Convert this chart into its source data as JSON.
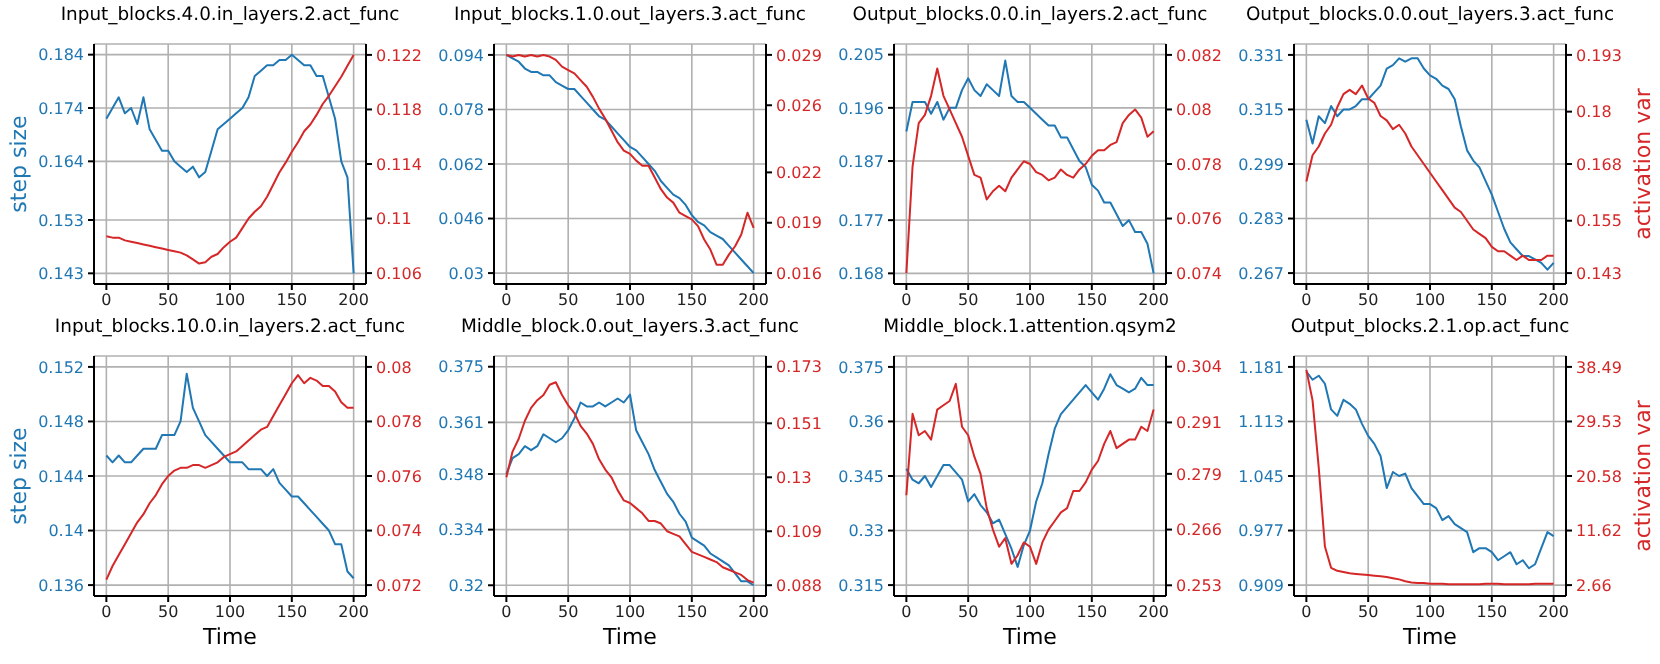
{
  "chart_data": [
    {
      "type": "line",
      "title": "Input_blocks.4.0.in_layers.2.act_func",
      "ylabel": "step size",
      "grid": true,
      "legend": false,
      "marker": "none",
      "x": [
        0,
        5,
        10,
        15,
        20,
        25,
        30,
        35,
        40,
        45,
        50,
        55,
        60,
        65,
        70,
        75,
        80,
        85,
        90,
        95,
        100,
        105,
        110,
        115,
        120,
        125,
        130,
        135,
        140,
        145,
        150,
        155,
        160,
        165,
        170,
        175,
        180,
        185,
        190,
        195,
        200
      ],
      "xlim": [
        -10,
        210
      ],
      "xticks": [
        0,
        50,
        100,
        150,
        200
      ],
      "ylim": [
        0.141,
        0.186
      ],
      "yticks": [
        0.143,
        0.153,
        0.164,
        0.174,
        0.184
      ],
      "y2lim": [
        0.1052,
        0.1228
      ],
      "y2ticks": [
        0.106,
        0.11,
        0.114,
        0.118,
        0.122
      ],
      "series": [
        {
          "color": "#1f77b4",
          "values": [
            0.172,
            0.174,
            0.176,
            0.173,
            0.174,
            0.171,
            0.176,
            0.17,
            0.168,
            0.166,
            0.166,
            0.164,
            0.163,
            0.162,
            0.163,
            0.161,
            0.162,
            0.166,
            0.17,
            0.171,
            0.172,
            0.173,
            0.174,
            0.176,
            0.18,
            0.181,
            0.182,
            0.182,
            0.183,
            0.183,
            0.184,
            0.183,
            0.182,
            0.182,
            0.18,
            0.18,
            0.176,
            0.172,
            0.164,
            0.161,
            0.143
          ]
        },
        {
          "color": "#d62728",
          "axis": "y2",
          "values": [
            0.1087,
            0.1086,
            0.1086,
            0.1084,
            0.1083,
            0.1082,
            0.1081,
            0.108,
            0.1079,
            0.1078,
            0.1077,
            0.1076,
            0.1075,
            0.1073,
            0.107,
            0.1067,
            0.1068,
            0.1072,
            0.1074,
            0.1079,
            0.1083,
            0.1086,
            0.1093,
            0.11,
            0.1105,
            0.1109,
            0.1116,
            0.1125,
            0.1134,
            0.1141,
            0.1149,
            0.1156,
            0.1164,
            0.1169,
            0.1176,
            0.1184,
            0.119,
            0.1197,
            0.1204,
            0.1212,
            0.122
          ]
        }
      ]
    },
    {
      "type": "line",
      "title": "Input_blocks.1.0.out_layers.3.act_func",
      "grid": true,
      "legend": false,
      "marker": "none",
      "x": [
        0,
        5,
        10,
        15,
        20,
        25,
        30,
        35,
        40,
        45,
        50,
        55,
        60,
        65,
        70,
        75,
        80,
        85,
        90,
        95,
        100,
        105,
        110,
        115,
        120,
        125,
        130,
        135,
        140,
        145,
        150,
        155,
        160,
        165,
        170,
        175,
        180,
        185,
        190,
        195,
        200
      ],
      "xlim": [
        -10,
        210
      ],
      "xticks": [
        0,
        50,
        100,
        150,
        200
      ],
      "ylim": [
        0.0268,
        0.0972
      ],
      "yticks": [
        0.03,
        0.046,
        0.062,
        0.078,
        0.094
      ],
      "y2lim": [
        0.01535,
        0.02965
      ],
      "y2ticks": [
        0.016,
        0.019,
        0.022,
        0.026,
        0.029
      ],
      "series": [
        {
          "color": "#1f77b4",
          "values": [
            0.094,
            0.093,
            0.092,
            0.09,
            0.089,
            0.089,
            0.088,
            0.088,
            0.086,
            0.085,
            0.084,
            0.084,
            0.082,
            0.08,
            0.078,
            0.076,
            0.075,
            0.073,
            0.071,
            0.069,
            0.067,
            0.066,
            0.064,
            0.062,
            0.06,
            0.057,
            0.055,
            0.053,
            0.052,
            0.05,
            0.047,
            0.045,
            0.044,
            0.042,
            0.041,
            0.04,
            0.038,
            0.036,
            0.034,
            0.032,
            0.03
          ]
        },
        {
          "color": "#d62728",
          "axis": "y2",
          "values": [
            0.029,
            0.0289,
            0.029,
            0.0289,
            0.029,
            0.0289,
            0.029,
            0.0289,
            0.0287,
            0.0283,
            0.0281,
            0.0279,
            0.0275,
            0.0271,
            0.0265,
            0.0258,
            0.0252,
            0.0245,
            0.0238,
            0.0233,
            0.0231,
            0.0227,
            0.0224,
            0.0224,
            0.0217,
            0.021,
            0.0205,
            0.0202,
            0.0196,
            0.0194,
            0.0192,
            0.0188,
            0.018,
            0.0174,
            0.0165,
            0.0165,
            0.0171,
            0.0176,
            0.0183,
            0.0196,
            0.0187
          ]
        }
      ]
    },
    {
      "type": "line",
      "title": "Output_blocks.0.0.in_layers.2.act_func",
      "grid": true,
      "legend": false,
      "marker": "none",
      "x": [
        0,
        5,
        10,
        15,
        20,
        25,
        30,
        35,
        40,
        45,
        50,
        55,
        60,
        65,
        70,
        75,
        80,
        85,
        90,
        95,
        100,
        105,
        110,
        115,
        120,
        125,
        130,
        135,
        140,
        145,
        150,
        155,
        160,
        165,
        170,
        175,
        180,
        185,
        190,
        195,
        200
      ],
      "xlim": [
        -10,
        210
      ],
      "xticks": [
        0,
        50,
        100,
        150,
        200
      ],
      "ylim": [
        0.1662,
        0.2068
      ],
      "yticks": [
        0.168,
        0.177,
        0.187,
        0.196,
        0.205
      ],
      "y2lim": [
        0.0736,
        0.0824
      ],
      "y2ticks": [
        0.074,
        0.076,
        0.078,
        0.08,
        0.082
      ],
      "series": [
        {
          "color": "#1f77b4",
          "values": [
            0.192,
            0.197,
            0.197,
            0.197,
            0.195,
            0.197,
            0.194,
            0.196,
            0.196,
            0.199,
            0.201,
            0.199,
            0.198,
            0.2,
            0.199,
            0.198,
            0.204,
            0.198,
            0.197,
            0.197,
            0.196,
            0.195,
            0.194,
            0.193,
            0.193,
            0.191,
            0.191,
            0.189,
            0.187,
            0.186,
            0.183,
            0.182,
            0.18,
            0.18,
            0.178,
            0.176,
            0.177,
            0.175,
            0.175,
            0.173,
            0.168
          ]
        },
        {
          "color": "#d62728",
          "axis": "y2",
          "values": [
            0.074,
            0.0779,
            0.0795,
            0.0798,
            0.0805,
            0.0815,
            0.0805,
            0.08,
            0.0795,
            0.079,
            0.0783,
            0.0776,
            0.0775,
            0.0767,
            0.077,
            0.0772,
            0.077,
            0.0775,
            0.0778,
            0.0781,
            0.078,
            0.0777,
            0.0776,
            0.0774,
            0.0775,
            0.0778,
            0.0776,
            0.0775,
            0.0778,
            0.078,
            0.0783,
            0.0785,
            0.0785,
            0.0787,
            0.0788,
            0.0795,
            0.0798,
            0.08,
            0.0797,
            0.079,
            0.0792
          ]
        }
      ]
    },
    {
      "type": "line",
      "title": "Output_blocks.0.0.out_layers.3.act_func",
      "y2label": "activation var",
      "grid": true,
      "legend": false,
      "marker": "none",
      "x": [
        0,
        5,
        10,
        15,
        20,
        25,
        30,
        35,
        40,
        45,
        50,
        55,
        60,
        65,
        70,
        75,
        80,
        85,
        90,
        95,
        100,
        105,
        110,
        115,
        120,
        125,
        130,
        135,
        140,
        145,
        150,
        155,
        160,
        165,
        170,
        175,
        180,
        185,
        190,
        195,
        200
      ],
      "xlim": [
        -10,
        210
      ],
      "xticks": [
        0,
        50,
        100,
        150,
        200
      ],
      "ylim": [
        0.2638,
        0.3342
      ],
      "yticks": [
        0.267,
        0.283,
        0.299,
        0.315,
        0.331
      ],
      "y2lim": [
        0.1405,
        0.1955
      ],
      "y2ticks": [
        0.143,
        0.155,
        0.168,
        0.18,
        0.193
      ],
      "series": [
        {
          "color": "#1f77b4",
          "values": [
            0.312,
            0.305,
            0.313,
            0.311,
            0.316,
            0.313,
            0.315,
            0.315,
            0.316,
            0.318,
            0.318,
            0.32,
            0.322,
            0.327,
            0.328,
            0.33,
            0.329,
            0.33,
            0.33,
            0.327,
            0.325,
            0.324,
            0.322,
            0.321,
            0.318,
            0.31,
            0.303,
            0.3,
            0.298,
            0.294,
            0.29,
            0.285,
            0.28,
            0.276,
            0.274,
            0.272,
            0.272,
            0.271,
            0.27,
            0.268,
            0.27
          ]
        },
        {
          "color": "#d62728",
          "axis": "y2",
          "values": [
            0.164,
            0.17,
            0.172,
            0.175,
            0.177,
            0.181,
            0.184,
            0.185,
            0.184,
            0.186,
            0.183,
            0.182,
            0.179,
            0.178,
            0.176,
            0.177,
            0.175,
            0.172,
            0.17,
            0.168,
            0.166,
            0.164,
            0.162,
            0.16,
            0.158,
            0.157,
            0.155,
            0.153,
            0.152,
            0.151,
            0.149,
            0.148,
            0.148,
            0.147,
            0.146,
            0.147,
            0.146,
            0.146,
            0.146,
            0.147,
            0.147
          ]
        }
      ]
    },
    {
      "type": "line",
      "title": "Input_blocks.10.0.in_layers.2.act_func",
      "ylabel": "step size",
      "xlabel": "Time",
      "grid": true,
      "legend": false,
      "marker": "none",
      "x": [
        0,
        5,
        10,
        15,
        20,
        25,
        30,
        35,
        40,
        45,
        50,
        55,
        60,
        65,
        70,
        75,
        80,
        85,
        90,
        95,
        100,
        105,
        110,
        115,
        120,
        125,
        130,
        135,
        140,
        145,
        150,
        155,
        160,
        165,
        170,
        175,
        180,
        185,
        190,
        195,
        200
      ],
      "xlim": [
        -10,
        210
      ],
      "xticks": [
        0,
        50,
        100,
        150,
        200
      ],
      "ylim": [
        0.1352,
        0.1528
      ],
      "yticks": [
        0.136,
        0.14,
        0.144,
        0.148,
        0.152
      ],
      "y2lim": [
        0.0716,
        0.0804
      ],
      "y2ticks": [
        0.072,
        0.074,
        0.076,
        0.078,
        0.08
      ],
      "series": [
        {
          "color": "#1f77b4",
          "values": [
            0.1455,
            0.145,
            0.1455,
            0.145,
            0.145,
            0.1455,
            0.146,
            0.146,
            0.146,
            0.147,
            0.147,
            0.147,
            0.148,
            0.1515,
            0.149,
            0.148,
            0.147,
            0.1465,
            0.146,
            0.1455,
            0.145,
            0.145,
            0.145,
            0.1445,
            0.1445,
            0.1445,
            0.144,
            0.1445,
            0.1435,
            0.143,
            0.1425,
            0.1425,
            0.142,
            0.1415,
            0.141,
            0.1405,
            0.14,
            0.139,
            0.139,
            0.137,
            0.1365
          ]
        },
        {
          "color": "#d62728",
          "axis": "y2",
          "values": [
            0.0722,
            0.0727,
            0.0731,
            0.0735,
            0.0739,
            0.0743,
            0.0746,
            0.075,
            0.0753,
            0.0757,
            0.076,
            0.0762,
            0.0763,
            0.0763,
            0.0764,
            0.0764,
            0.0763,
            0.0764,
            0.0765,
            0.0767,
            0.0768,
            0.0769,
            0.0771,
            0.0773,
            0.0775,
            0.0777,
            0.0778,
            0.0782,
            0.0786,
            0.079,
            0.0794,
            0.0797,
            0.0794,
            0.0796,
            0.0795,
            0.0793,
            0.0793,
            0.0791,
            0.0787,
            0.0785,
            0.0785
          ]
        }
      ]
    },
    {
      "type": "line",
      "title": "Middle_block.0.out_layers.3.act_func",
      "xlabel": "Time",
      "grid": true,
      "legend": false,
      "marker": "none",
      "x": [
        0,
        5,
        10,
        15,
        20,
        25,
        30,
        35,
        40,
        45,
        50,
        55,
        60,
        65,
        70,
        75,
        80,
        85,
        90,
        95,
        100,
        105,
        110,
        115,
        120,
        125,
        130,
        135,
        140,
        145,
        150,
        155,
        160,
        165,
        170,
        175,
        180,
        185,
        190,
        195,
        200
      ],
      "xlim": [
        -10,
        210
      ],
      "xticks": [
        0,
        50,
        100,
        150,
        200
      ],
      "ylim": [
        0.3173,
        0.3777
      ],
      "yticks": [
        0.32,
        0.334,
        0.348,
        0.361,
        0.375
      ],
      "y2lim": [
        0.0838,
        0.1772
      ],
      "y2ticks": [
        0.088,
        0.109,
        0.13,
        0.151,
        0.173
      ],
      "series": [
        {
          "color": "#1f77b4",
          "values": [
            0.348,
            0.352,
            0.353,
            0.355,
            0.354,
            0.355,
            0.358,
            0.357,
            0.356,
            0.357,
            0.359,
            0.362,
            0.366,
            0.365,
            0.365,
            0.366,
            0.365,
            0.366,
            0.367,
            0.366,
            0.368,
            0.359,
            0.356,
            0.353,
            0.349,
            0.346,
            0.343,
            0.341,
            0.338,
            0.336,
            0.332,
            0.331,
            0.33,
            0.328,
            0.327,
            0.326,
            0.325,
            0.323,
            0.321,
            0.321,
            0.32
          ]
        },
        {
          "color": "#d62728",
          "axis": "y2",
          "values": [
            0.13,
            0.14,
            0.145,
            0.152,
            0.157,
            0.16,
            0.162,
            0.166,
            0.167,
            0.162,
            0.158,
            0.155,
            0.15,
            0.147,
            0.143,
            0.137,
            0.133,
            0.13,
            0.125,
            0.121,
            0.12,
            0.118,
            0.116,
            0.113,
            0.113,
            0.112,
            0.109,
            0.108,
            0.107,
            0.104,
            0.101,
            0.1,
            0.099,
            0.098,
            0.097,
            0.095,
            0.094,
            0.093,
            0.092,
            0.09,
            0.089
          ]
        }
      ]
    },
    {
      "type": "line",
      "title": "Middle_block.1.attention.qsym2",
      "xlabel": "Time",
      "grid": true,
      "legend": false,
      "marker": "none",
      "x": [
        0,
        5,
        10,
        15,
        20,
        25,
        30,
        35,
        40,
        45,
        50,
        55,
        60,
        65,
        70,
        75,
        80,
        85,
        90,
        95,
        100,
        105,
        110,
        115,
        120,
        125,
        130,
        135,
        140,
        145,
        150,
        155,
        160,
        165,
        170,
        175,
        180,
        185,
        190,
        195,
        200
      ],
      "xlim": [
        -10,
        210
      ],
      "xticks": [
        0,
        50,
        100,
        150,
        200
      ],
      "ylim": [
        0.312,
        0.378
      ],
      "yticks": [
        0.315,
        0.33,
        0.345,
        0.36,
        0.375
      ],
      "y2lim": [
        0.2505,
        0.3065
      ],
      "y2ticks": [
        0.253,
        0.266,
        0.279,
        0.291,
        0.304
      ],
      "series": [
        {
          "color": "#1f77b4",
          "values": [
            0.347,
            0.344,
            0.343,
            0.345,
            0.342,
            0.345,
            0.348,
            0.348,
            0.346,
            0.344,
            0.338,
            0.34,
            0.337,
            0.335,
            0.332,
            0.333,
            0.329,
            0.325,
            0.32,
            0.326,
            0.33,
            0.338,
            0.343,
            0.351,
            0.358,
            0.362,
            0.364,
            0.366,
            0.368,
            0.37,
            0.368,
            0.366,
            0.369,
            0.373,
            0.37,
            0.369,
            0.368,
            0.369,
            0.372,
            0.37,
            0.37
          ]
        },
        {
          "color": "#d62728",
          "axis": "y2",
          "values": [
            0.274,
            0.293,
            0.288,
            0.289,
            0.287,
            0.294,
            0.295,
            0.296,
            0.3,
            0.29,
            0.288,
            0.283,
            0.279,
            0.271,
            0.266,
            0.262,
            0.264,
            0.258,
            0.26,
            0.263,
            0.262,
            0.258,
            0.263,
            0.266,
            0.268,
            0.27,
            0.271,
            0.275,
            0.275,
            0.277,
            0.28,
            0.282,
            0.286,
            0.289,
            0.285,
            0.286,
            0.287,
            0.287,
            0.29,
            0.289,
            0.294
          ]
        }
      ]
    },
    {
      "type": "line",
      "title": "Output_blocks.2.1.op.act_func",
      "xlabel": "Time",
      "y2label": "activation var",
      "grid": true,
      "legend": false,
      "marker": "none",
      "x": [
        0,
        5,
        10,
        15,
        20,
        25,
        30,
        35,
        40,
        45,
        50,
        55,
        60,
        65,
        70,
        75,
        80,
        85,
        90,
        95,
        100,
        105,
        110,
        115,
        120,
        125,
        130,
        135,
        140,
        145,
        150,
        155,
        160,
        165,
        170,
        175,
        180,
        185,
        190,
        195,
        200
      ],
      "xlim": [
        -10,
        210
      ],
      "xticks": [
        0,
        50,
        100,
        150,
        200
      ],
      "ylim": [
        0.8954,
        1.1946
      ],
      "yticks": [
        0.909,
        0.977,
        1.045,
        1.113,
        1.181
      ],
      "y2lim": [
        0.87,
        40.28
      ],
      "y2ticks": [
        2.66,
        11.62,
        20.58,
        29.53,
        38.49
      ],
      "series": [
        {
          "color": "#1f77b4",
          "values": [
            1.175,
            1.165,
            1.17,
            1.16,
            1.128,
            1.12,
            1.14,
            1.135,
            1.128,
            1.11,
            1.095,
            1.085,
            1.07,
            1.03,
            1.05,
            1.045,
            1.048,
            1.03,
            1.02,
            1.01,
            1.01,
            1.005,
            0.99,
            0.995,
            0.985,
            0.98,
            0.975,
            0.95,
            0.955,
            0.955,
            0.95,
            0.94,
            0.945,
            0.95,
            0.935,
            0.94,
            0.93,
            0.935,
            0.955,
            0.975,
            0.97
          ]
        },
        {
          "color": "#d62728",
          "axis": "y2",
          "values": [
            38,
            33,
            22,
            9,
            5.5,
            5,
            4.8,
            4.6,
            4.5,
            4.4,
            4.3,
            4.2,
            4.1,
            4,
            3.8,
            3.6,
            3.3,
            3.1,
            3,
            3,
            2.9,
            2.9,
            2.9,
            2.8,
            2.8,
            2.8,
            2.8,
            2.8,
            2.8,
            2.9,
            2.9,
            2.9,
            2.8,
            2.8,
            2.8,
            2.8,
            2.8,
            2.9,
            2.9,
            2.9,
            2.9
          ]
        }
      ]
    }
  ]
}
